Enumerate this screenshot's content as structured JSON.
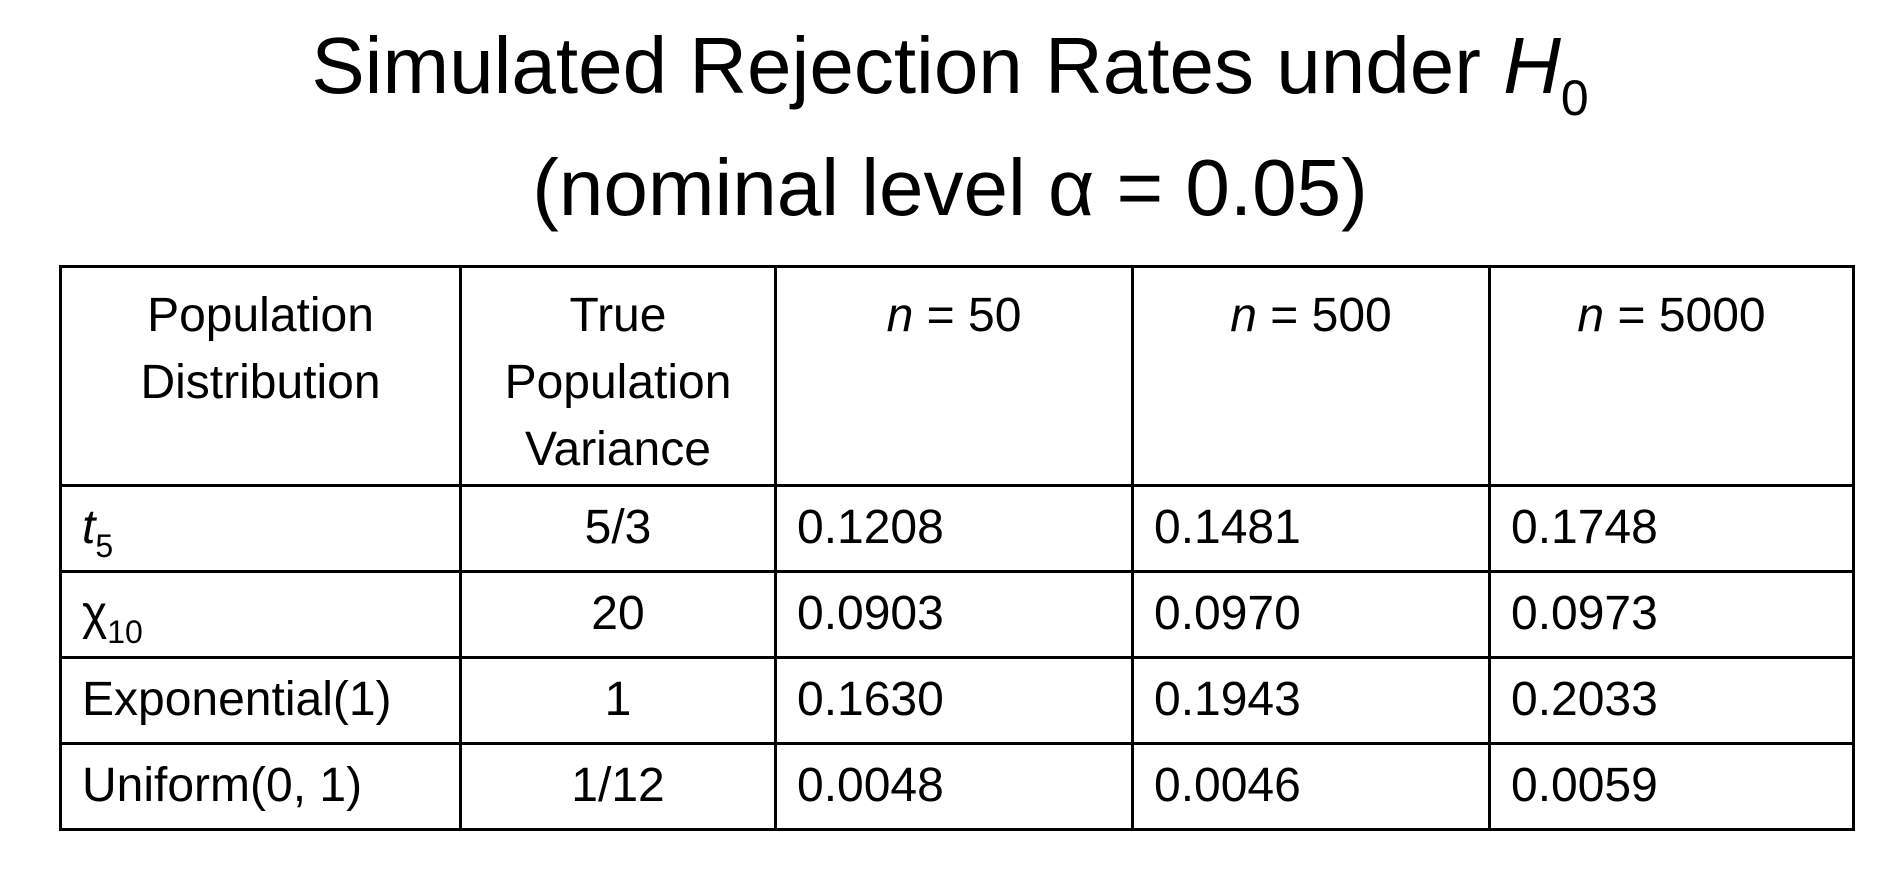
{
  "title": {
    "line1_prefix": "Simulated Rejection Rates under ",
    "hypothesis_symbol": "H",
    "hypothesis_subscript": "0",
    "line2": "(nominal level α = 0.05)"
  },
  "table": {
    "headers": {
      "distribution": [
        "Population",
        "Distribution"
      ],
      "variance": [
        "True",
        "Population",
        "Variance"
      ],
      "n50": {
        "var": "n",
        "rest": " = 50"
      },
      "n500": {
        "var": "n",
        "rest": " = 500"
      },
      "n5000": {
        "var": "n",
        "rest": " = 5000"
      }
    },
    "rows": [
      {
        "dist_symbol": "t",
        "dist_subscript": "5",
        "variance": "5/3",
        "rates": [
          "0.1208",
          "0.1481",
          "0.1748"
        ]
      },
      {
        "dist_symbol": "χ",
        "dist_subscript": "10",
        "variance": "20",
        "rates": [
          "0.0903",
          "0.0970",
          "0.0973"
        ]
      },
      {
        "dist_label": "Exponential(1)",
        "variance": "1",
        "rates": [
          "0.1630",
          "0.1943",
          "0.2033"
        ]
      },
      {
        "dist_label": "Uniform(0, 1)",
        "variance": "1/12",
        "rates": [
          "0.0048",
          "0.0046",
          "0.0059"
        ]
      }
    ]
  }
}
